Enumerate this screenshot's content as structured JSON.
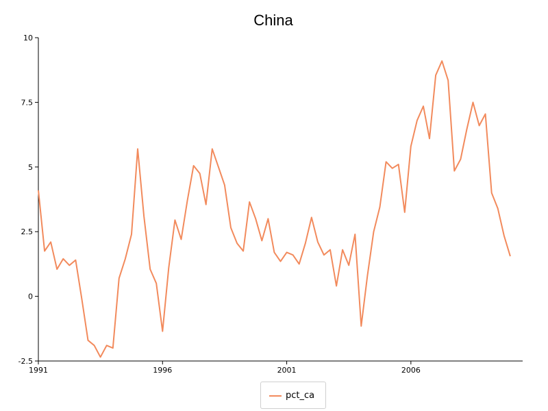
{
  "chart_data": {
    "type": "line",
    "title": "China",
    "xlabel": "",
    "ylabel": "",
    "xlim": [
      1991,
      2010.5
    ],
    "ylim": [
      -2.5,
      10
    ],
    "xticks": [
      1991,
      1996,
      2001,
      2006
    ],
    "xtick_labels": [
      "1991",
      "1996",
      "2001",
      "2006"
    ],
    "yticks": [
      -2.5,
      0,
      2.5,
      5,
      7.5,
      10
    ],
    "ytick_labels": [
      "-2.5",
      "0",
      "2.5",
      "5",
      "7.5",
      "10"
    ],
    "grid": false,
    "legend": "bottom-center",
    "colors": {
      "series": "#f28a5c"
    },
    "series": [
      {
        "name": "pct_ca",
        "x": [
          1991.0,
          1991.25,
          1991.5,
          1991.75,
          1992.0,
          1992.25,
          1992.5,
          1992.75,
          1993.0,
          1993.25,
          1993.5,
          1993.75,
          1994.0,
          1994.25,
          1994.5,
          1994.75,
          1995.0,
          1995.25,
          1995.5,
          1995.75,
          1996.0,
          1996.25,
          1996.5,
          1996.75,
          1997.0,
          1997.25,
          1997.5,
          1997.75,
          1998.0,
          1998.25,
          1998.5,
          1998.75,
          1999.0,
          1999.25,
          1999.5,
          1999.75,
          2000.0,
          2000.25,
          2000.5,
          2000.75,
          2001.0,
          2001.25,
          2001.5,
          2001.75,
          2002.0,
          2002.25,
          2002.5,
          2002.75,
          2003.0,
          2003.25,
          2003.5,
          2003.75,
          2004.0,
          2004.25,
          2004.5,
          2004.75,
          2005.0,
          2005.25,
          2005.5,
          2005.75,
          2006.0,
          2006.25,
          2006.5,
          2006.75,
          2007.0,
          2007.25,
          2007.5,
          2007.75,
          2008.0,
          2008.25,
          2008.5,
          2008.75,
          2009.0,
          2009.25,
          2009.5,
          2009.75,
          2010.0,
          2010.25,
          2010.5
        ],
        "values": [
          4.1,
          1.75,
          2.1,
          1.05,
          1.45,
          1.2,
          1.4,
          -0.1,
          -1.7,
          -1.9,
          -2.35,
          -1.9,
          -2.0,
          0.7,
          1.45,
          2.4,
          5.7,
          3.1,
          1.05,
          0.5,
          -1.35,
          1.1,
          2.95,
          2.2,
          3.7,
          5.05,
          4.75,
          3.55,
          5.7,
          5.0,
          4.3,
          2.65,
          2.05,
          1.75,
          3.65,
          3.0,
          2.15,
          3.0,
          1.7,
          1.35,
          1.7,
          1.6,
          1.25,
          2.05,
          3.05,
          2.1,
          1.6,
          1.8,
          0.4,
          1.8,
          1.2,
          2.4,
          -1.15,
          0.8,
          2.5,
          3.45,
          5.2,
          4.95,
          5.1,
          3.25,
          5.8,
          6.8,
          7.35,
          6.1,
          8.55,
          9.1,
          8.35,
          4.85,
          5.3,
          6.45,
          7.5,
          6.6,
          7.05,
          4.0,
          3.4,
          2.35,
          1.55,
          null,
          null
        ]
      }
    ]
  }
}
